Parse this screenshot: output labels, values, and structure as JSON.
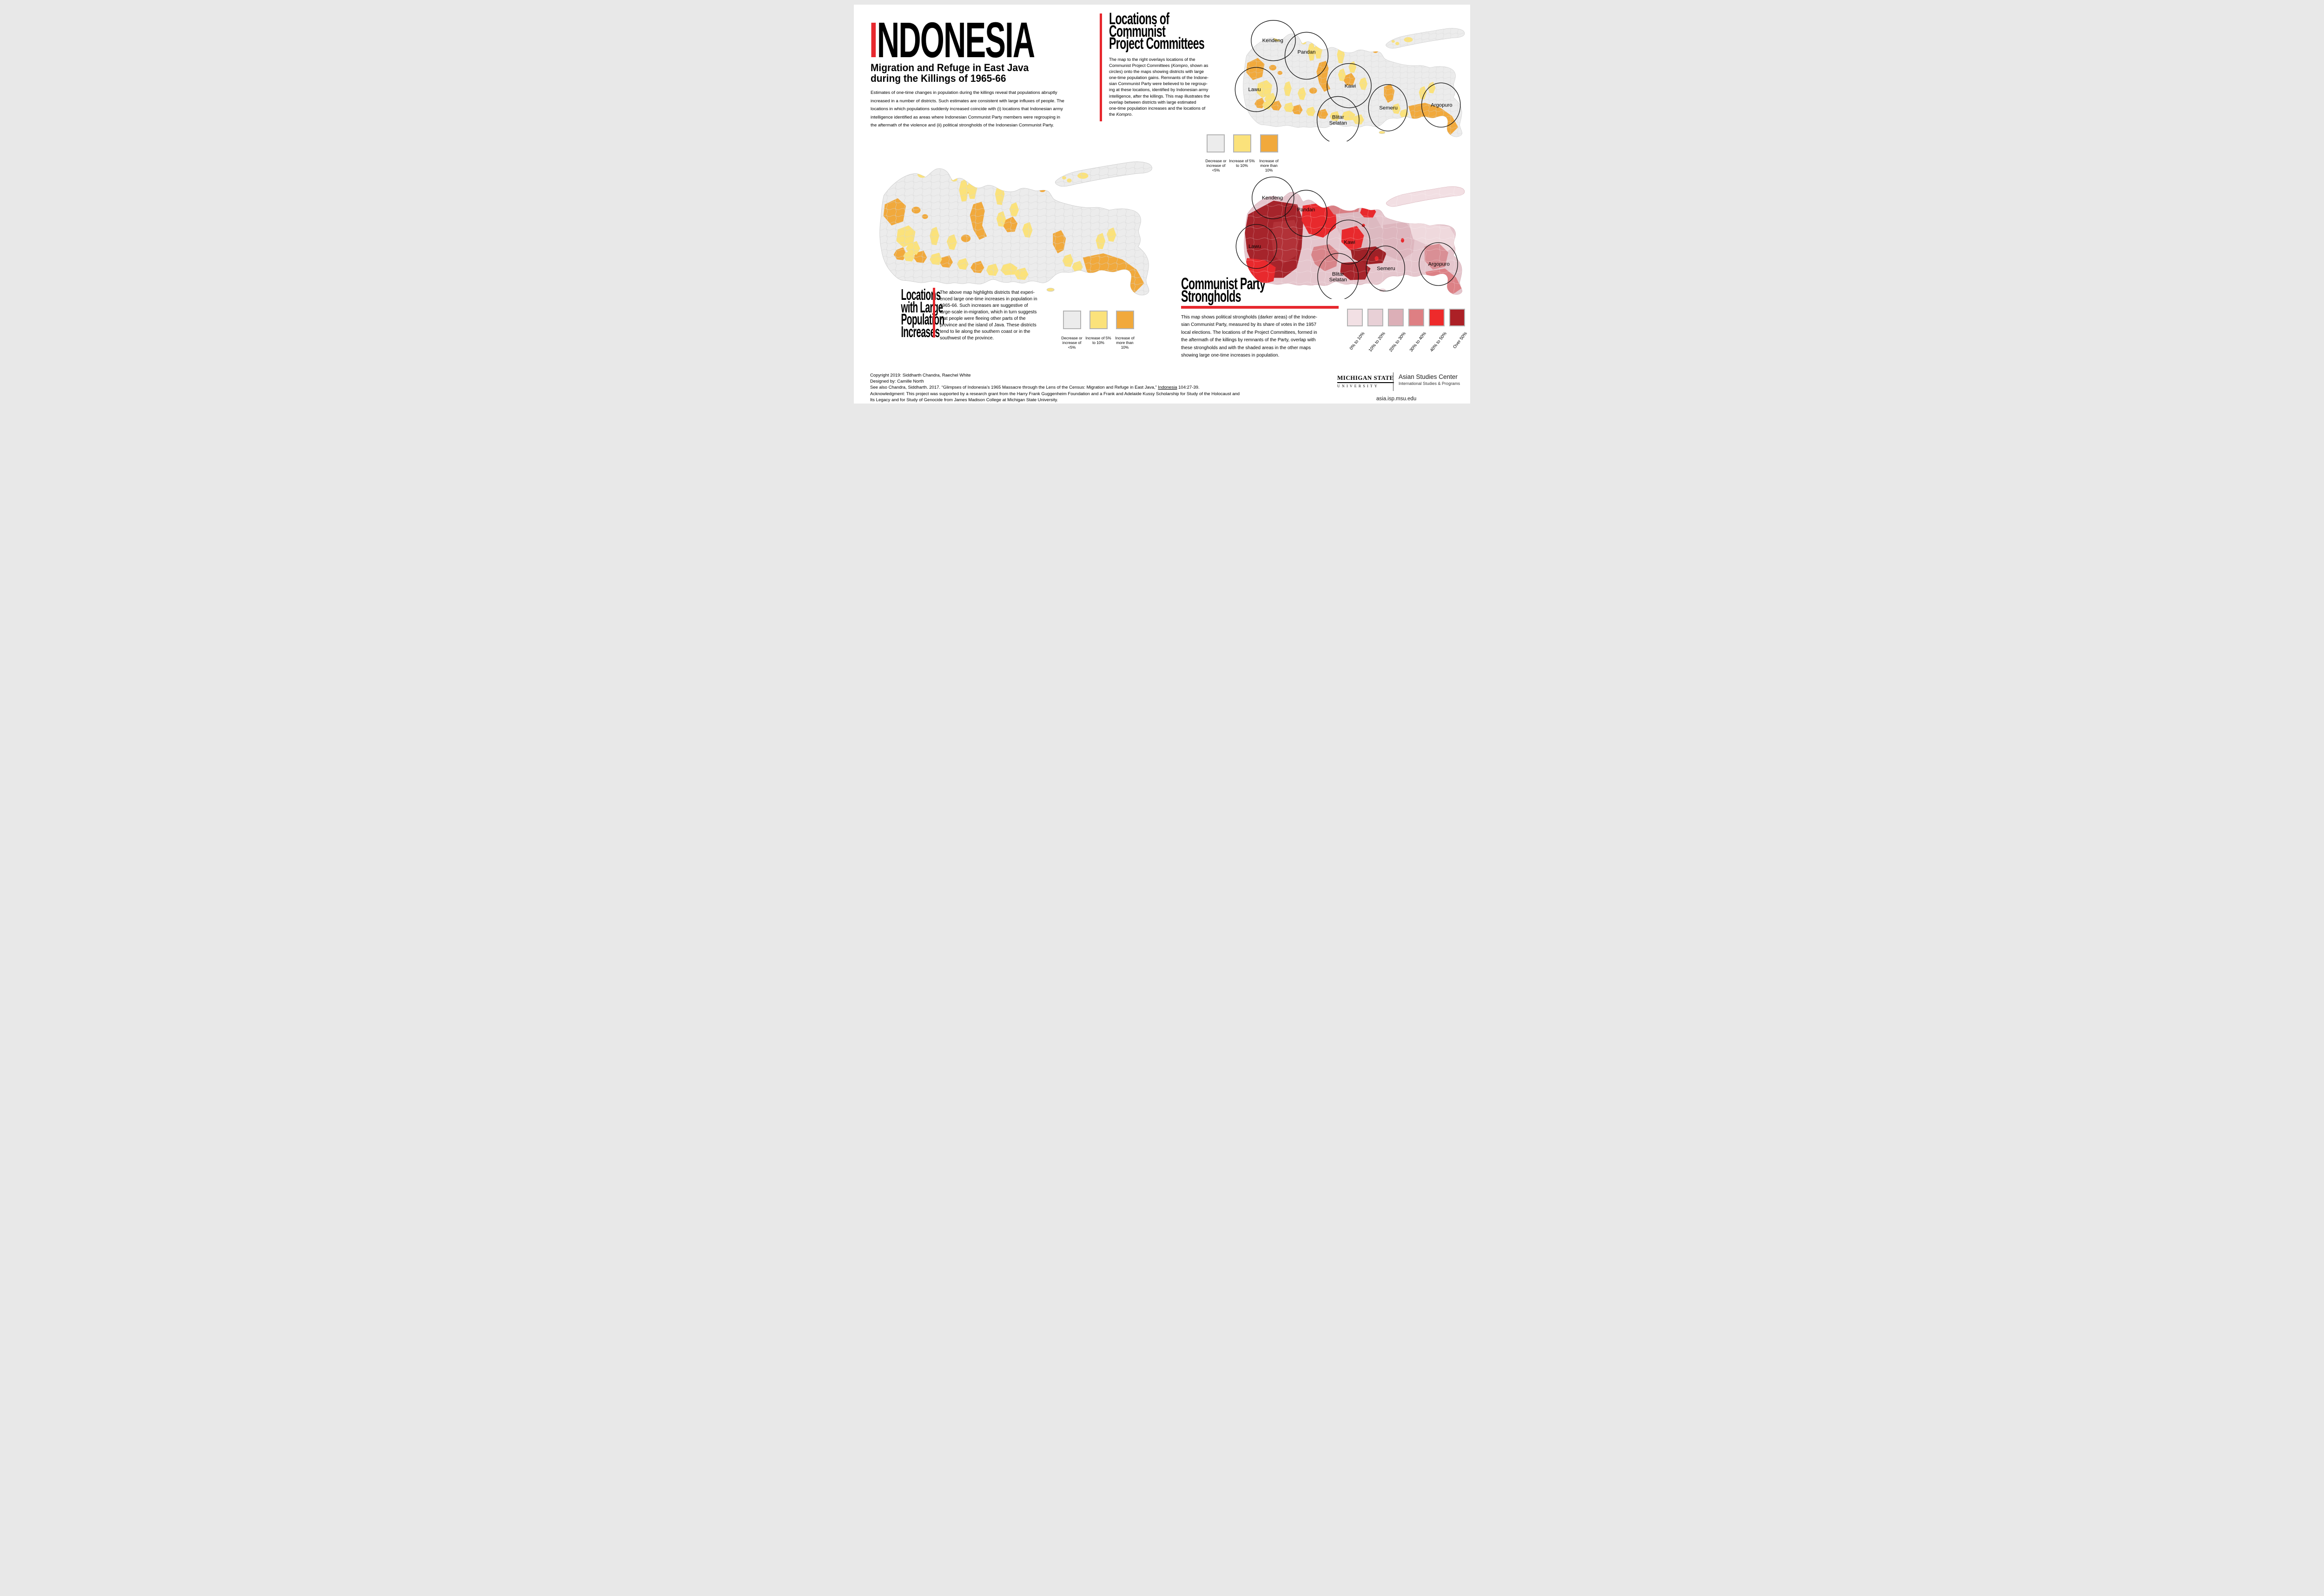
{
  "header": {
    "title": "INDONESIA",
    "subtitle": "Migration and Refuge in East Java\nduring the Killings of 1965-66",
    "intro": "Estimates of one-time changes in population during the killings reveal that populations abruptly\nincreased in a number of districts. Such estimates are consistent with large influxes of people. The\nlocations in which populations suddenly increased coincide with (i) locations that Indonesian army\nintelligence identified as areas where Indonesian Communist Party members were regrouping in\nthe aftermath of the violence and (ii) political strongholds of the Indonesian Communist Party."
  },
  "committees": {
    "heading": "Locations of\nCommunist\nProject Committees",
    "paragraph_parts": [
      {
        "text": "The map to the right overlays locations of the\nCommunist Project Committees (",
        "style": "normal"
      },
      {
        "text": "Kompro",
        "style": "italic"
      },
      {
        "text": ", shown as\ncircles) onto the maps showing districts with large\none-time population gains. Remnants of the Indone-\nsian Communist Party were believed to be regroup-\ning at these locations, identified by Indonesian army\nintelligence, after the killings. This map illustrates the\noverlap between districts with large estimated\none-time population increases and the locations of\nthe ",
        "style": "normal"
      },
      {
        "text": "Kompro",
        "style": "italic"
      },
      {
        "text": ".",
        "style": "normal"
      }
    ]
  },
  "large_increases": {
    "heading": "Locations\nwith Large\nPopulation\nIncreases",
    "paragraph": "The above map highlights districts that experi-\nenced large one-time increases in population in\n1965-66. Such increases are suggestive of\nlarge-scale in-migration, which in turn suggests\nthat people were fleeing other parts of the\nprovince and the island of Java. These districts\ntend to lie along the southern coast or in the\nsouthwest of the province."
  },
  "strongholds": {
    "heading": "Communist Party\nStrongholds",
    "paragraph": "This map shows political strongholds (darker areas) of the Indone-\nsian Communist Party, measured by its share of votes in the 1957\nlocal elections. The locations of the Project Committees, formed in\nthe aftermath of the killings by remnants of the Party, overlap with\nthese strongholds and with the shaded areas in the other maps\nshowing large one-time increases in population.",
    "legend": [
      {
        "label": "0% to 10%",
        "color": "#F2E0E4"
      },
      {
        "label": "10% to 20%",
        "color": "#E8D0D6"
      },
      {
        "label": "20% to 30%",
        "color": "#DCAFB7"
      },
      {
        "label": "30% to 40%",
        "color": "#DE7F83"
      },
      {
        "label": "40% to 50%",
        "color": "#EE2A2B"
      },
      {
        "label": "Over 50%",
        "color": "#AC2026"
      }
    ]
  },
  "legend_population": {
    "items": [
      {
        "label": "Decrease or\nincrease of\n<5%",
        "color": "#ECECEC"
      },
      {
        "label": "Increase of 5%\nto 10%",
        "color": "#FBE27B"
      },
      {
        "label": "Increase of\nmore than\n10%",
        "color": "#F1A93C"
      }
    ]
  },
  "maps": {
    "kompro_regions": [
      "Kendeng",
      "Pandan",
      "Lawu",
      "Kawi",
      "Blitar\nSelatan",
      "Semeru",
      "Argopuro"
    ]
  },
  "credits": {
    "line1": "Copyright 2019: Siddharth Chandra, Raechel White",
    "line2": "Designed by: Camille North",
    "line3_parts": [
      {
        "text": "See also Chandra, Siddharth. 2017. “Glimpses of Indonesia’s 1965 Massacre through the Lens of the Census: Migration and Refuge in East Java,” ",
        "style": "normal"
      },
      {
        "text": "Indonesia",
        "style": "underline"
      },
      {
        "text": " 104:27-39.",
        "style": "normal"
      }
    ],
    "line4": "Acknowledgment: This project was supported by a research grant from the Harry Frank Guggenheim Foundation and a Frank and Adelaide Kussy Scholarship for Study of the Holocaust and",
    "line5": "Its Legacy and for Study of Genocide from James Madison College at Michigan State University."
  },
  "footer_logo": {
    "org_line1": "MICHIGAN STATE",
    "org_line2": "UNIVERSITY",
    "center_name": "Asian Studies Center",
    "center_sub": "International Studies & Programs",
    "url": "asia.isp.msu.edu"
  },
  "colors": {
    "accent_red": "#E7282E",
    "map_gray": "#ECECEC",
    "map_yellow": "#FBE27B",
    "map_orange": "#F1A93C",
    "strongholds_dark": "#A6242B",
    "strongholds_bright": "#E8292D",
    "strongholds_pale": "#F2DFE3"
  }
}
